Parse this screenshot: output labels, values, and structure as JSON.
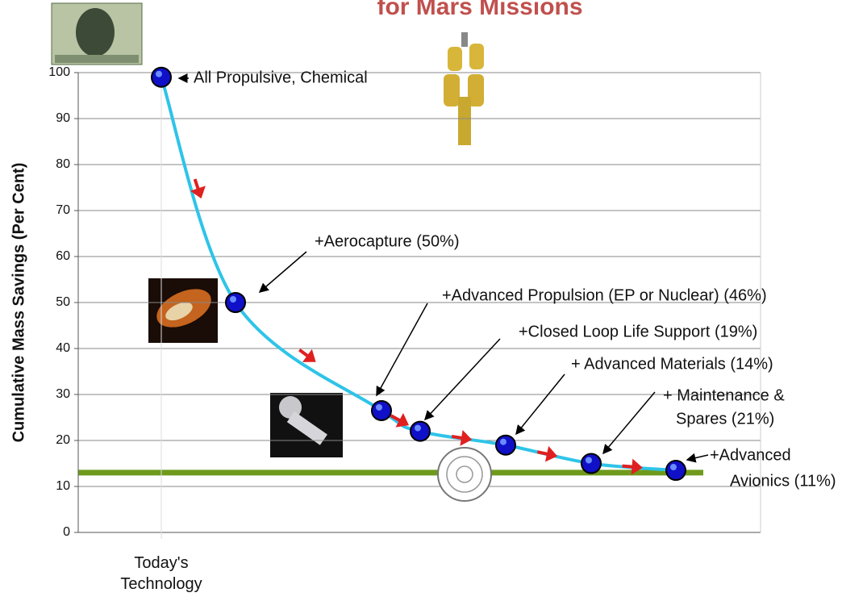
{
  "chart_data": {
    "type": "line",
    "title": "for Mars Missions",
    "y_label": "Cumulative Mass Savings (Per Cent)",
    "categories": [
      "Today's Technology",
      null,
      null,
      null,
      null,
      null,
      null
    ],
    "values": [
      99,
      50,
      26.5,
      22,
      19,
      15,
      13.5
    ],
    "color": "#2ec4e8",
    "marker_color": "#1010c8",
    "ylim": [
      0,
      100
    ],
    "yticks": [
      0,
      10,
      20,
      30,
      40,
      50,
      60,
      70,
      80,
      90,
      100
    ],
    "grid": true,
    "reference_line": {
      "value": 13,
      "color": "#6f9a1c"
    },
    "annotations": [
      [
        "All Propulsive, Chemical"
      ],
      [
        "+Aerocapture (50%)"
      ],
      [
        "+Advanced Propulsion (EP or Nuclear) (46%)"
      ],
      [
        "+Closed Loop Life Support (19%)"
      ],
      [
        "+ Advanced Materials (14%)"
      ],
      [
        "+ Maintenance &",
        "Spares (21%)"
      ],
      [
        "+Advanced",
        "Avionics (11%)"
      ]
    ]
  }
}
